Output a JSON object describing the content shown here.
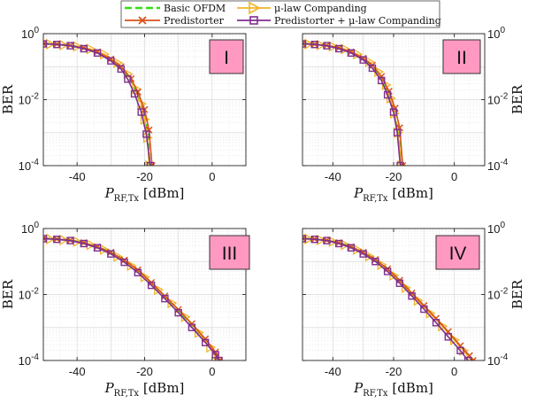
{
  "legend": {
    "entries": [
      {
        "name": "Basic OFDM",
        "color": "#33dd11",
        "marker": "none",
        "dash": true
      },
      {
        "name": "μ-law Companding",
        "color": "#f0b428",
        "marker": "triangle-right",
        "dash": false
      },
      {
        "name": "Predistorter",
        "color": "#d95319",
        "marker": "x",
        "dash": false
      },
      {
        "name": "Predistorter + μ-law Companding",
        "color": "#7e2f8e",
        "marker": "square",
        "dash": false
      }
    ]
  },
  "chart_data": [
    {
      "type": "line",
      "panel_label": "I",
      "xlabel_main": "P",
      "xlabel_sub": "RF,Tx",
      "xlabel_unit": "[dBm]",
      "ylabel": "BER",
      "ylabel_side": "left",
      "xlim": [
        -50,
        10
      ],
      "ylim": [
        0.0001,
        1
      ],
      "yscale": "log",
      "xticks": [
        "-40",
        "-20",
        "0"
      ],
      "yticks": [
        "10^0",
        "10^-2",
        "10^-4"
      ],
      "grid": true,
      "label_color": "#ff99c2",
      "series": [
        {
          "name": "Basic OFDM",
          "x": [
            -50,
            -46,
            -42,
            -38,
            -34,
            -30,
            -27,
            -24,
            -22,
            -20,
            -19,
            -18.6
          ],
          "y": [
            0.5,
            0.48,
            0.44,
            0.37,
            0.28,
            0.17,
            0.095,
            0.038,
            0.014,
            0.0035,
            0.0009,
            0.0001
          ]
        },
        {
          "name": "μ-law Companding",
          "x": [
            -48,
            -44,
            -40,
            -36,
            -32,
            -28,
            -25,
            -22.5,
            -21,
            -20,
            -19.2,
            -18.6
          ],
          "y": [
            0.48,
            0.45,
            0.41,
            0.34,
            0.24,
            0.13,
            0.06,
            0.021,
            0.0075,
            0.0025,
            0.0007,
            0.0001
          ]
        },
        {
          "name": "Predistorter",
          "x": [
            -50,
            -46,
            -42,
            -38,
            -34,
            -30,
            -27,
            -24,
            -22,
            -20,
            -18.7,
            -17.8
          ],
          "y": [
            0.5,
            0.48,
            0.44,
            0.37,
            0.28,
            0.17,
            0.1,
            0.043,
            0.017,
            0.005,
            0.0012,
            0.0001
          ]
        },
        {
          "name": "Predistorter + μ-law Companding",
          "x": [
            -50,
            -46,
            -42,
            -38,
            -34,
            -30,
            -27,
            -25,
            -23,
            -21,
            -19.5,
            -18.3
          ],
          "y": [
            0.49,
            0.47,
            0.43,
            0.35,
            0.26,
            0.15,
            0.085,
            0.042,
            0.015,
            0.0042,
            0.0009,
            0.0001
          ]
        }
      ]
    },
    {
      "type": "line",
      "panel_label": "II",
      "xlabel_main": "P",
      "xlabel_sub": "RF,Tx",
      "xlabel_unit": "[dBm]",
      "ylabel": "BER",
      "ylabel_side": "right",
      "xlim": [
        -50,
        10
      ],
      "ylim": [
        0.0001,
        1
      ],
      "yscale": "log",
      "xticks": [
        "-40",
        "-20",
        "0"
      ],
      "yticks": [
        "10^0",
        "10^-2",
        "10^-4"
      ],
      "grid": true,
      "label_color": "#ff99c2",
      "series": [
        {
          "name": "Basic OFDM",
          "x": [
            -50,
            -46,
            -42,
            -38,
            -34,
            -30,
            -27,
            -24,
            -22,
            -20,
            -18.5,
            -17.5
          ],
          "y": [
            0.5,
            0.48,
            0.44,
            0.37,
            0.28,
            0.17,
            0.1,
            0.042,
            0.016,
            0.0045,
            0.0011,
            0.0001
          ]
        },
        {
          "name": "μ-law Companding",
          "x": [
            -48,
            -44,
            -40,
            -36,
            -32,
            -28,
            -25,
            -22.5,
            -21,
            -19.8,
            -18.6,
            -17.4
          ],
          "y": [
            0.48,
            0.45,
            0.41,
            0.34,
            0.24,
            0.14,
            0.07,
            0.028,
            0.011,
            0.0038,
            0.001,
            0.0001
          ]
        },
        {
          "name": "Predistorter",
          "x": [
            -50,
            -46,
            -42,
            -38,
            -34,
            -30,
            -27,
            -24,
            -21.5,
            -19.5,
            -18,
            -17
          ],
          "y": [
            0.5,
            0.48,
            0.44,
            0.37,
            0.28,
            0.18,
            0.11,
            0.05,
            0.018,
            0.0055,
            0.0014,
            0.0001
          ]
        },
        {
          "name": "Predistorter + μ-law Companding",
          "x": [
            -50,
            -46,
            -42,
            -38,
            -34,
            -30,
            -27,
            -24,
            -22,
            -20,
            -18.8,
            -17.8
          ],
          "y": [
            0.49,
            0.47,
            0.43,
            0.35,
            0.26,
            0.16,
            0.09,
            0.038,
            0.014,
            0.0042,
            0.001,
            0.0001
          ]
        }
      ]
    },
    {
      "type": "line",
      "panel_label": "III",
      "xlabel_main": "P",
      "xlabel_sub": "RF,Tx",
      "xlabel_unit": "[dBm]",
      "ylabel": "BER",
      "ylabel_side": "left",
      "xlim": [
        -50,
        10
      ],
      "ylim": [
        0.0001,
        1
      ],
      "yscale": "log",
      "xticks": [
        "-40",
        "-20",
        "0"
      ],
      "yticks": [
        "10^0",
        "10^-2",
        "10^-4"
      ],
      "grid": true,
      "label_color": "#ff99c2",
      "series": [
        {
          "name": "Basic OFDM",
          "x": [
            -50,
            -46,
            -42,
            -38,
            -34,
            -30,
            -26,
            -22,
            -18,
            -14,
            -10,
            -6,
            -2,
            1,
            2.5
          ],
          "y": [
            0.5,
            0.48,
            0.44,
            0.37,
            0.28,
            0.19,
            0.11,
            0.055,
            0.022,
            0.0085,
            0.0033,
            0.0012,
            0.0004,
            0.00017,
            0.0001
          ]
        },
        {
          "name": "μ-law Companding",
          "x": [
            -48,
            -44,
            -40,
            -36,
            -32,
            -28,
            -24,
            -20,
            -16,
            -12,
            -8,
            -4,
            -0.5,
            1.8
          ],
          "y": [
            0.48,
            0.45,
            0.4,
            0.32,
            0.23,
            0.14,
            0.075,
            0.034,
            0.014,
            0.0055,
            0.0021,
            0.0007,
            0.00025,
            0.0001
          ]
        },
        {
          "name": "Predistorter",
          "x": [
            -50,
            -46,
            -42,
            -38,
            -34,
            -30,
            -26,
            -22,
            -18,
            -14,
            -10,
            -6,
            -2,
            1,
            2.2
          ],
          "y": [
            0.5,
            0.48,
            0.44,
            0.37,
            0.28,
            0.19,
            0.11,
            0.056,
            0.023,
            0.009,
            0.0035,
            0.0013,
            0.00045,
            0.00018,
            0.0001
          ]
        },
        {
          "name": "Predistorter + μ-law Companding",
          "x": [
            -50,
            -46,
            -42,
            -38,
            -34,
            -30,
            -26,
            -22,
            -18,
            -14,
            -10,
            -6,
            -2,
            1,
            2
          ],
          "y": [
            0.49,
            0.47,
            0.43,
            0.35,
            0.26,
            0.17,
            0.095,
            0.046,
            0.019,
            0.0075,
            0.0028,
            0.001,
            0.00035,
            0.00015,
            0.0001
          ]
        }
      ]
    },
    {
      "type": "line",
      "panel_label": "IV",
      "xlabel_main": "P",
      "xlabel_sub": "RF,Tx",
      "xlabel_unit": "[dBm]",
      "ylabel": "BER",
      "ylabel_side": "right",
      "xlim": [
        -50,
        10
      ],
      "ylim": [
        0.0001,
        1
      ],
      "yscale": "log",
      "xticks": [
        "-40",
        "-20",
        "0"
      ],
      "yticks": [
        "10^0",
        "10^-2",
        "10^-4"
      ],
      "grid": true,
      "label_color": "#ff99c2",
      "series": [
        {
          "name": "Basic OFDM",
          "x": [
            -50,
            -46,
            -42,
            -38,
            -34,
            -30,
            -26,
            -22,
            -18,
            -14,
            -10,
            -6,
            -2,
            2,
            5,
            6.5
          ],
          "y": [
            0.5,
            0.48,
            0.44,
            0.37,
            0.28,
            0.19,
            0.115,
            0.06,
            0.027,
            0.011,
            0.0045,
            0.0018,
            0.0007,
            0.00026,
            0.00013,
            0.0001
          ]
        },
        {
          "name": "μ-law Companding",
          "x": [
            -48,
            -44,
            -40,
            -36,
            -32,
            -28,
            -24,
            -20,
            -16,
            -12,
            -8,
            -4,
            0,
            3,
            5.5
          ],
          "y": [
            0.48,
            0.45,
            0.4,
            0.32,
            0.23,
            0.145,
            0.08,
            0.038,
            0.016,
            0.0066,
            0.0027,
            0.0011,
            0.00042,
            0.0002,
            0.0001
          ]
        },
        {
          "name": "Predistorter",
          "x": [
            -50,
            -46,
            -42,
            -38,
            -34,
            -30,
            -26,
            -22,
            -18,
            -14,
            -10,
            -6,
            -2,
            2,
            5,
            6.2
          ],
          "y": [
            0.5,
            0.48,
            0.44,
            0.37,
            0.28,
            0.19,
            0.115,
            0.06,
            0.027,
            0.011,
            0.0046,
            0.0019,
            0.00075,
            0.00028,
            0.00014,
            0.0001
          ]
        },
        {
          "name": "Predistorter + μ-law Companding",
          "x": [
            -50,
            -46,
            -42,
            -38,
            -34,
            -30,
            -26,
            -22,
            -18,
            -14,
            -10,
            -6,
            -2,
            2,
            4.5
          ],
          "y": [
            0.49,
            0.47,
            0.43,
            0.35,
            0.26,
            0.17,
            0.1,
            0.05,
            0.022,
            0.009,
            0.0036,
            0.0014,
            0.00052,
            0.0002,
            0.0001
          ]
        }
      ]
    }
  ]
}
